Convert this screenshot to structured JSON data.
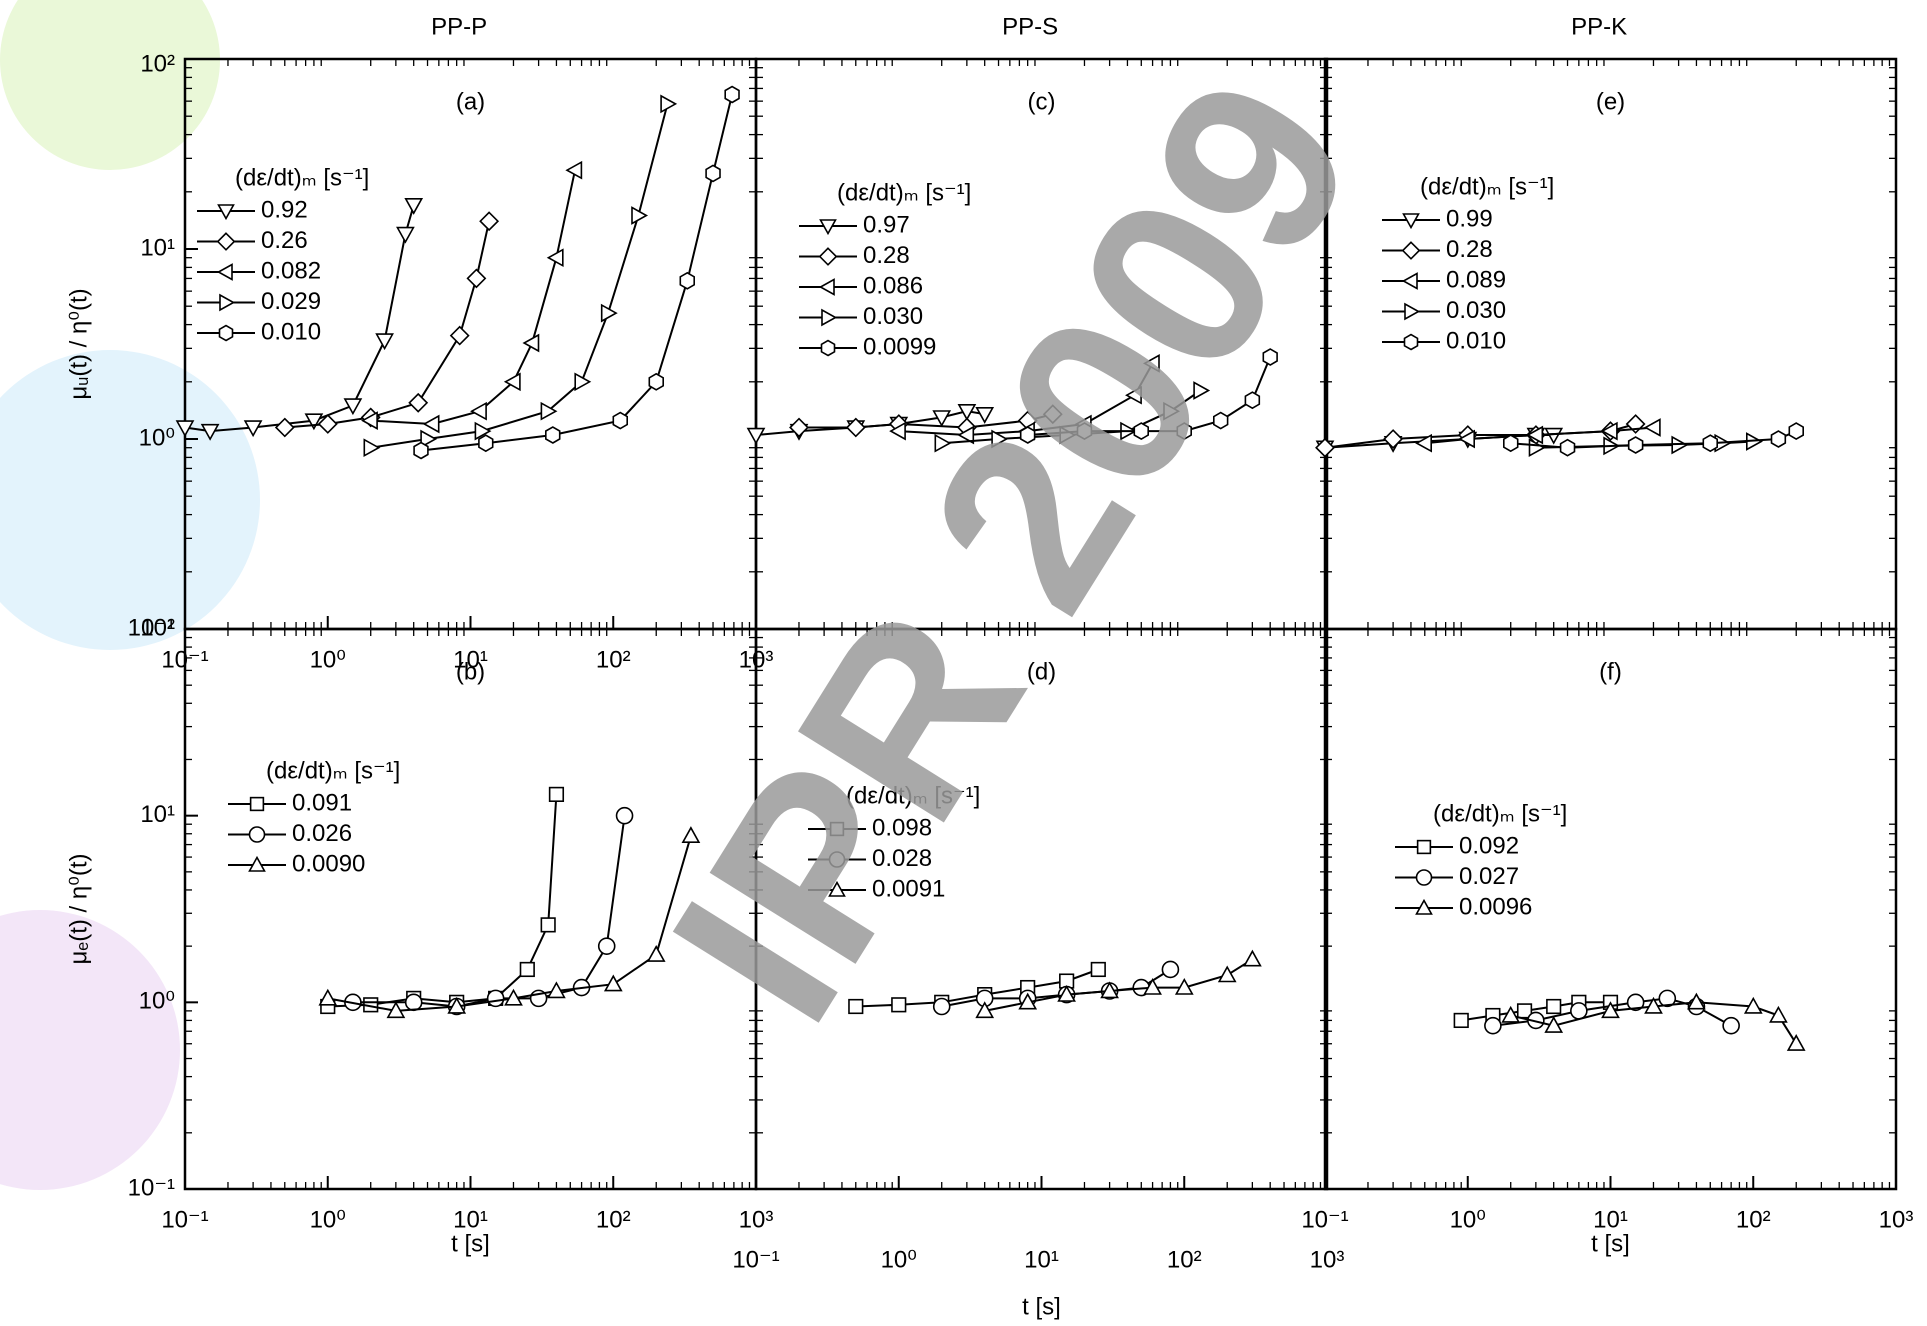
{
  "watermark": "IPR 2009",
  "chart_data": [
    {
      "type": "line",
      "title": "PP-P",
      "panel_label": "(a)",
      "ylabel": "μᵤ(t) / η⁰(t)",
      "legend_title": "(dε/dt)ₘ [s⁻¹]",
      "xscale": "log",
      "yscale": "log",
      "legend": "upper left",
      "xlim": [
        0.1,
        1000
      ],
      "ylim": [
        0.1,
        100
      ],
      "xticks": [
        {
          "value": 0.1,
          "label": "10⁻¹"
        },
        {
          "value": 1,
          "label": "10⁰"
        },
        {
          "value": 10,
          "label": "10¹"
        },
        {
          "value": 100,
          "label": "10²"
        },
        {
          "value": 1000,
          "label": "10³"
        }
      ],
      "yticks": [
        {
          "value": 0.1,
          "label": "10⁻¹"
        },
        {
          "value": 1,
          "label": "10⁰"
        },
        {
          "value": 10,
          "label": "10¹"
        },
        {
          "value": 100,
          "label": "10²"
        }
      ],
      "series": [
        {
          "name": "0.92",
          "marker": "triangle-down",
          "color": "#000000",
          "x": [
            0.1,
            0.15,
            0.3,
            0.8,
            1.5,
            2.5,
            3.5,
            4.0
          ],
          "values": [
            1.15,
            1.1,
            1.15,
            1.25,
            1.5,
            3.3,
            12,
            17
          ]
        },
        {
          "name": "0.26",
          "marker": "diamond",
          "color": "#000000",
          "x": [
            0.5,
            1,
            2,
            4.3,
            8.4,
            11,
            13.5
          ],
          "values": [
            1.15,
            1.2,
            1.3,
            1.55,
            3.5,
            7,
            14
          ]
        },
        {
          "name": "0.082",
          "marker": "triangle-left",
          "color": "#000000",
          "x": [
            2,
            5.4,
            11.6,
            20,
            27,
            40,
            54
          ],
          "values": [
            1.25,
            1.2,
            1.4,
            2,
            3.2,
            9,
            26
          ]
        },
        {
          "name": "0.029",
          "marker": "triangle-right",
          "color": "#000000",
          "x": [
            2,
            5,
            12,
            34.8,
            60,
            92,
            150,
            240
          ],
          "values": [
            0.9,
            1.0,
            1.1,
            1.4,
            2,
            4.6,
            15,
            58
          ]
        },
        {
          "name": "0.010",
          "marker": "hexagon",
          "color": "#000000",
          "x": [
            4.5,
            12.8,
            37.7,
            112,
            200,
            330,
            500,
            680
          ],
          "values": [
            0.87,
            0.95,
            1.05,
            1.25,
            2,
            6.8,
            25,
            65
          ]
        }
      ]
    },
    {
      "type": "line",
      "panel_label": "(b)",
      "ylabel": "μₑ(t) / η⁰(t)",
      "xlabel": "t [s]",
      "legend_title": "(dε/dt)ₘ [s⁻¹]",
      "xscale": "log",
      "yscale": "log",
      "legend": "upper left",
      "xlim": [
        0.1,
        1000
      ],
      "ylim": [
        0.1,
        100
      ],
      "xticks": [
        {
          "value": 0.1,
          "label": "10⁻¹"
        },
        {
          "value": 1,
          "label": "10⁰"
        },
        {
          "value": 10,
          "label": "10¹"
        },
        {
          "value": 100,
          "label": "10²"
        },
        {
          "value": 1000,
          "label": "10³"
        }
      ],
      "yticks": [
        {
          "value": 0.1,
          "label": "10⁻¹"
        },
        {
          "value": 1,
          "label": "10⁰"
        },
        {
          "value": 10,
          "label": "10¹"
        },
        {
          "value": 100,
          "label": "10²"
        }
      ],
      "series": [
        {
          "name": "0.091",
          "marker": "square",
          "color": "#000000",
          "x": [
            1,
            2,
            4,
            8,
            15,
            25,
            35,
            40
          ],
          "values": [
            0.95,
            0.97,
            1.05,
            1.0,
            1.05,
            1.5,
            2.6,
            13
          ]
        },
        {
          "name": "0.026",
          "marker": "circle",
          "color": "#000000",
          "x": [
            1.5,
            4,
            8,
            15,
            30,
            60,
            90,
            120
          ],
          "values": [
            1.0,
            1.0,
            0.95,
            1.05,
            1.05,
            1.2,
            2,
            10
          ]
        },
        {
          "name": "0.0090",
          "marker": "triangle-up",
          "color": "#000000",
          "x": [
            1,
            3,
            8,
            20,
            40,
            100,
            200,
            350
          ],
          "values": [
            1.05,
            0.9,
            0.95,
            1.05,
            1.15,
            1.25,
            1.8,
            7.8
          ]
        }
      ]
    },
    {
      "type": "line",
      "title": "PP-S",
      "panel_label": "(c)",
      "legend_title": "(dε/dt)ₘ [s⁻¹]",
      "xscale": "log",
      "yscale": "log",
      "legend": "upper left",
      "xlim": [
        0.1,
        1000
      ],
      "ylim": [
        0.1,
        100
      ],
      "series": [
        {
          "name": "0.97",
          "marker": "triangle-down",
          "color": "#000000",
          "x": [
            0.1,
            0.2,
            0.5,
            1,
            2,
            3,
            4
          ],
          "values": [
            1.05,
            1.1,
            1.15,
            1.2,
            1.3,
            1.4,
            1.35
          ]
        },
        {
          "name": "0.28",
          "marker": "diamond",
          "color": "#000000",
          "x": [
            0.2,
            0.5,
            1,
            3,
            8,
            12
          ],
          "values": [
            1.15,
            1.15,
            1.2,
            1.15,
            1.25,
            1.35
          ]
        },
        {
          "name": "0.086",
          "marker": "triangle-left",
          "color": "#000000",
          "x": [
            1,
            3,
            8,
            20,
            45,
            60
          ],
          "values": [
            1.1,
            1.05,
            1.1,
            1.2,
            1.7,
            2.5
          ]
        },
        {
          "name": "0.030",
          "marker": "triangle-right",
          "color": "#000000",
          "x": [
            2,
            5,
            15,
            40,
            80,
            130
          ],
          "values": [
            0.95,
            1.0,
            1.05,
            1.1,
            1.4,
            1.8
          ]
        },
        {
          "name": "0.0099",
          "marker": "hexagon",
          "color": "#000000",
          "x": [
            8,
            20,
            50,
            100,
            180,
            300,
            400
          ],
          "values": [
            1.05,
            1.1,
            1.1,
            1.1,
            1.25,
            1.6,
            2.7
          ]
        }
      ]
    },
    {
      "type": "line",
      "panel_label": "(d)",
      "xlabel": "t [s]",
      "legend_title": "(dε/dt)ₘ [s⁻¹]",
      "xscale": "log",
      "yscale": "log",
      "legend": "upper left",
      "xlim": [
        0.1,
        1000
      ],
      "ylim": [
        0.1,
        100
      ],
      "xticks": [
        {
          "value": 0.1,
          "label": "10⁻¹"
        },
        {
          "value": 1,
          "label": "10⁰"
        },
        {
          "value": 10,
          "label": "10¹"
        },
        {
          "value": 100,
          "label": "10²"
        },
        {
          "value": 1000,
          "label": "10³"
        }
      ],
      "series": [
        {
          "name": "0.098",
          "marker": "square",
          "color": "#000000",
          "x": [
            0.5,
            1,
            2,
            4,
            8,
            15,
            25
          ],
          "values": [
            0.95,
            0.97,
            1.0,
            1.1,
            1.2,
            1.3,
            1.5
          ]
        },
        {
          "name": "0.028",
          "marker": "circle",
          "color": "#000000",
          "x": [
            2,
            4,
            8,
            15,
            30,
            50,
            80
          ],
          "values": [
            0.95,
            1.05,
            1.05,
            1.1,
            1.15,
            1.2,
            1.5
          ]
        },
        {
          "name": "0.0091",
          "marker": "triangle-up",
          "color": "#000000",
          "x": [
            4,
            8,
            15,
            30,
            60,
            100,
            200,
            300
          ],
          "values": [
            0.9,
            1.0,
            1.1,
            1.15,
            1.2,
            1.2,
            1.4,
            1.7
          ]
        }
      ]
    },
    {
      "type": "line",
      "title": "PP-K",
      "panel_label": "(e)",
      "legend_title": "(dε/dt)ₘ [s⁻¹]",
      "xscale": "log",
      "yscale": "log",
      "legend": "upper left",
      "xlim": [
        0.1,
        1000
      ],
      "ylim": [
        0.1,
        100
      ],
      "series": [
        {
          "name": "0.99",
          "marker": "triangle-down",
          "color": "#000000",
          "x": [
            0.1,
            0.3,
            1,
            3,
            4
          ],
          "values": [
            0.9,
            0.95,
            1.0,
            1.05,
            1.05
          ]
        },
        {
          "name": "0.28",
          "marker": "diamond",
          "color": "#000000",
          "x": [
            0.1,
            0.3,
            1,
            3,
            10,
            15
          ],
          "values": [
            0.9,
            1.0,
            1.05,
            1.05,
            1.1,
            1.2
          ]
        },
        {
          "name": "0.089",
          "marker": "triangle-left",
          "color": "#000000",
          "x": [
            0.5,
            1,
            3,
            10,
            20
          ],
          "values": [
            0.95,
            1.0,
            1.05,
            1.1,
            1.15
          ]
        },
        {
          "name": "0.030",
          "marker": "triangle-right",
          "color": "#000000",
          "x": [
            3,
            10,
            30,
            60,
            100
          ],
          "values": [
            0.9,
            0.92,
            0.93,
            0.95,
            0.97
          ]
        },
        {
          "name": "0.010",
          "marker": "hexagon",
          "color": "#000000",
          "x": [
            2,
            5,
            15,
            50,
            150,
            200
          ],
          "values": [
            0.95,
            0.9,
            0.93,
            0.95,
            1.0,
            1.1
          ]
        }
      ]
    },
    {
      "type": "line",
      "panel_label": "(f)",
      "xlabel": "t [s]",
      "legend_title": "(dε/dt)ₘ [s⁻¹]",
      "xscale": "log",
      "yscale": "log",
      "legend": "upper left",
      "xlim": [
        0.1,
        1000
      ],
      "ylim": [
        0.1,
        100
      ],
      "xticks": [
        {
          "value": 0.1,
          "label": "10⁻¹"
        },
        {
          "value": 1,
          "label": "10⁰"
        },
        {
          "value": 10,
          "label": "10¹"
        },
        {
          "value": 100,
          "label": "10²"
        },
        {
          "value": 1000,
          "label": "10³"
        }
      ],
      "series": [
        {
          "name": "0.092",
          "marker": "square",
          "color": "#000000",
          "x": [
            0.9,
            1.5,
            2.5,
            4,
            6,
            10
          ],
          "values": [
            0.8,
            0.85,
            0.9,
            0.95,
            1.0,
            1.0
          ]
        },
        {
          "name": "0.027",
          "marker": "circle",
          "color": "#000000",
          "x": [
            1.5,
            3,
            6,
            15,
            25,
            40,
            70
          ],
          "values": [
            0.75,
            0.8,
            0.9,
            1.0,
            1.05,
            0.95,
            0.75
          ]
        },
        {
          "name": "0.0096",
          "marker": "triangle-up",
          "color": "#000000",
          "x": [
            2,
            4,
            10,
            20,
            40,
            100,
            150,
            200
          ],
          "values": [
            0.85,
            0.75,
            0.9,
            0.95,
            1.0,
            0.95,
            0.85,
            0.6
          ]
        }
      ]
    }
  ]
}
